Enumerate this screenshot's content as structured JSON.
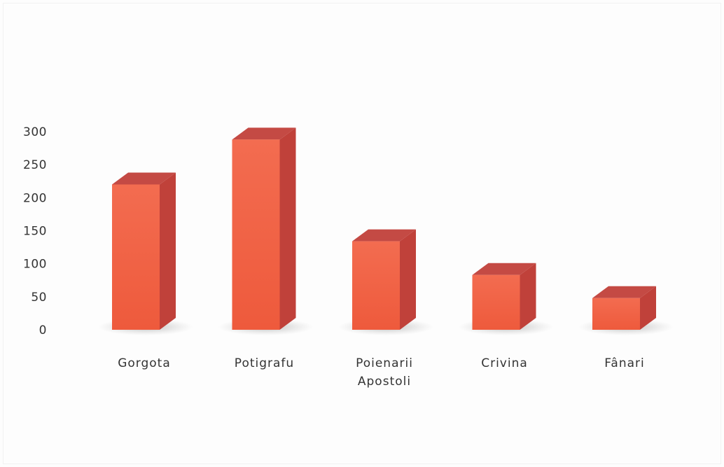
{
  "chart_data": {
    "type": "bar",
    "style": "3d",
    "categories": [
      "Gorgota",
      "Potigrafu",
      "Poienarii Apostoli",
      "Crivina",
      "Fânari"
    ],
    "category_lines": [
      [
        "Gorgota"
      ],
      [
        "Potigrafu"
      ],
      [
        "Poienarii",
        "Apostoli"
      ],
      [
        "Crivina"
      ],
      [
        "Fânari"
      ]
    ],
    "values": [
      220,
      288,
      134,
      83,
      48
    ],
    "ylim": [
      0,
      300
    ],
    "yticks": [
      "0",
      "50",
      "100",
      "150",
      "200",
      "250",
      "300"
    ],
    "title": "",
    "xlabel": "",
    "ylabel": "",
    "grid": false,
    "legend": "none",
    "colors": {
      "front": "#ee5a3c",
      "front_top": "#f36c50",
      "side": "#c0413a",
      "top": "#c44a44",
      "shadow": "#bbbbbb",
      "text": "#333333"
    }
  }
}
